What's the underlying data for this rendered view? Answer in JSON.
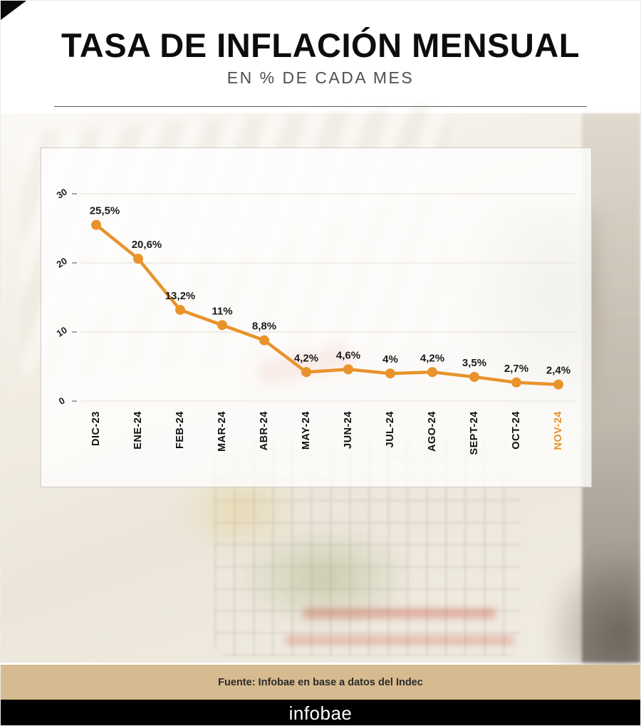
{
  "header": {
    "title": "TASA DE INFLACIÓN MENSUAL",
    "subtitle": "EN % DE CADA MES"
  },
  "colors": {
    "accent": "#E8932C",
    "tan": "#D7BB90",
    "black": "#000000"
  },
  "chart_data": {
    "type": "line",
    "title": "Tasa de inflación mensual",
    "xlabel": "",
    "ylabel": "",
    "categories": [
      "DIC-23",
      "ENE-24",
      "FEB-24",
      "MAR-24",
      "ABR-24",
      "MAY-24",
      "JUN-24",
      "JUL-24",
      "AGO-24",
      "SEPT-24",
      "OCT-24",
      "NOV-24"
    ],
    "values": [
      25.5,
      20.6,
      13.2,
      11,
      8.8,
      4.2,
      4.6,
      4,
      4.2,
      3.5,
      2.7,
      2.4
    ],
    "labels": [
      "25,5%",
      "20,6%",
      "13,2%",
      "11%",
      "8,8%",
      "4,2%",
      "4,6%",
      "4%",
      "4,2%",
      "3,5%",
      "2,7%",
      "2,4%"
    ],
    "y_ticks": [
      0,
      10,
      20,
      30
    ],
    "ylim": [
      0,
      32
    ],
    "grid": true,
    "legend": "none",
    "line_color": "#E8932C",
    "highlight_last": true
  },
  "footer": {
    "source": "Fuente: Infobae en base a datos del Indec",
    "brand": "infobae"
  }
}
